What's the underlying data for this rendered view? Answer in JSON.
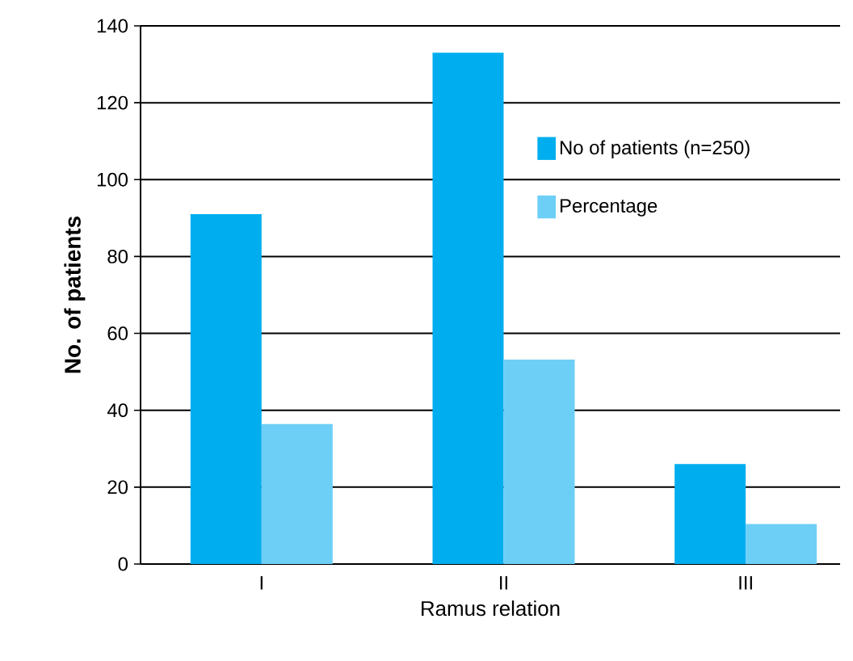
{
  "chart_data": {
    "type": "bar",
    "xlabel": "Ramus relation",
    "ylabel": "No. of patients",
    "categories": [
      "I",
      "II",
      "III"
    ],
    "series": [
      {
        "name": "No of patients (n=250)",
        "color": "#00aeef",
        "values": [
          91,
          133,
          26
        ]
      },
      {
        "name": "Percentage",
        "color": "#6dcff6",
        "values": [
          36.4,
          53.2,
          10.4
        ]
      }
    ],
    "ylim": [
      0,
      140
    ],
    "yticks": [
      0,
      20,
      40,
      60,
      80,
      100,
      120,
      140
    ],
    "grid": "y",
    "legend": "top right"
  }
}
